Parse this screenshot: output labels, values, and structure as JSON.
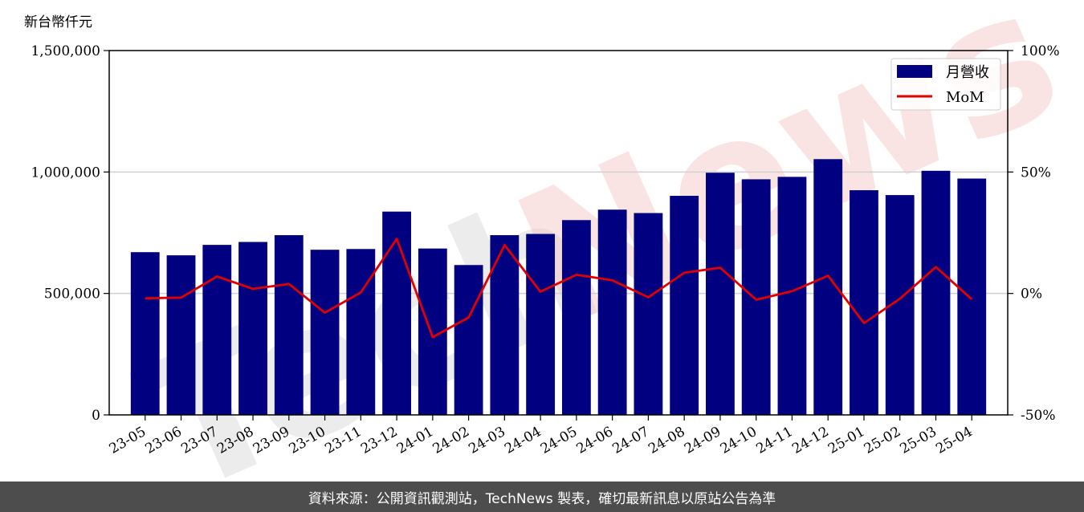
{
  "watermark": {
    "part1": "Tech",
    "part2": "News"
  },
  "chart_data": {
    "type": "bar+line",
    "y_unit_label": "新台幣仟元",
    "categories": [
      "23-05",
      "23-06",
      "23-07",
      "23-08",
      "23-09",
      "23-10",
      "23-11",
      "23-12",
      "24-01",
      "24-02",
      "24-03",
      "24-04",
      "24-05",
      "24-06",
      "24-07",
      "24-08",
      "24-09",
      "24-10",
      "24-11",
      "24-12",
      "25-01",
      "25-02",
      "25-03",
      "25-04"
    ],
    "series": [
      {
        "name": "月營收",
        "type": "bar",
        "axis": "left",
        "color": "#000080",
        "values": [
          670000,
          657000,
          700000,
          712000,
          740000,
          680000,
          683000,
          837000,
          685000,
          617000,
          740000,
          745000,
          802000,
          845000,
          831000,
          902000,
          997000,
          970000,
          980000,
          1053000,
          925000,
          905000,
          1005000,
          973000
        ]
      },
      {
        "name": "MoM",
        "type": "line",
        "axis": "right",
        "unit": "%",
        "color": "#e00000",
        "values": [
          -2.0,
          -1.7,
          7.0,
          1.9,
          3.9,
          -7.9,
          0.4,
          22.5,
          -18.0,
          -9.9,
          19.9,
          0.7,
          7.7,
          5.4,
          -1.6,
          8.5,
          10.6,
          -2.6,
          0.9,
          7.3,
          -12.2,
          -2.2,
          10.9,
          -2.4
        ]
      }
    ],
    "y_left": {
      "range": [
        0,
        1500000
      ],
      "ticks": [
        "0",
        "500,000",
        "1,000,000",
        "1,500,000"
      ]
    },
    "y_right": {
      "range": [
        -50,
        100
      ],
      "ticks": [
        "-50%",
        "0%",
        "50%",
        "100%"
      ]
    },
    "grid": "horizontal",
    "legend_position": "top-right"
  },
  "footer": {
    "text": "資料來源：公開資訊觀測站，TechNews 製表，確切最新訊息以原站公告為準"
  }
}
